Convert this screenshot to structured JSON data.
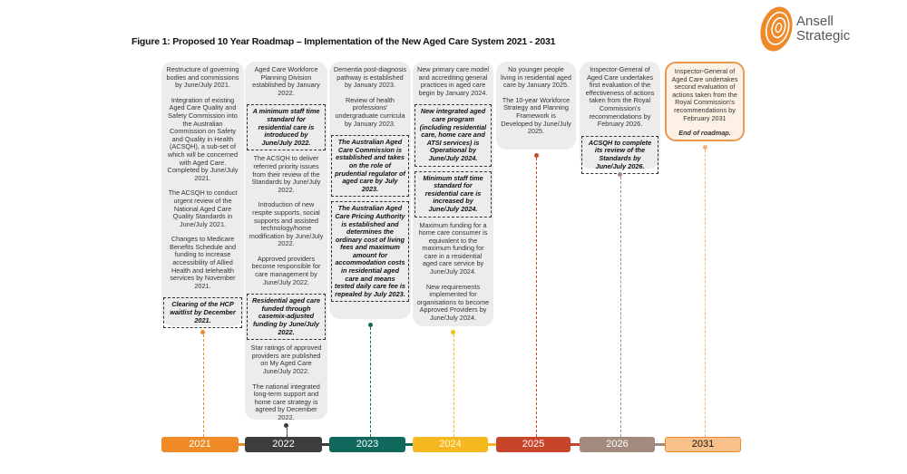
{
  "title": "Figure 1: Proposed 10 Year Roadmap – Implementation of the New Aged Care System 2021 - 2031",
  "logo": {
    "line1": "Ansell",
    "line2": "Strategic",
    "color": "#ef8a2a"
  },
  "years": [
    {
      "label": "2021",
      "color": "#f08a24",
      "items": [
        {
          "text": "Restructure of governing bodies and commissions by June/July 2021."
        },
        {
          "text": "Integration of existing Aged Care Quality and Safety Commission into the Australian Commission on Safety and Quality in Health (ACSQH), a sub-set of which will be concerned with Aged Care. Completed by June/July 2021."
        },
        {
          "text": "The ACSQH to conduct urgent review of the National Aged Care Quality Standards in June/July 2021."
        },
        {
          "text": "Changes to Medicare Benefits Schedule and funding to increase accessibility of Allied Health and telehealth services by November 2021."
        },
        {
          "text": "Clearing of the HCP waitlist by December 2021.",
          "highlight": true
        }
      ]
    },
    {
      "label": "2022",
      "color": "#3d3d3d",
      "items": [
        {
          "text": "Aged Care Workforce Planning Division established by January 2022."
        },
        {
          "text": "A minimum staff time standard for residential care is introduced by June/July 2022.",
          "highlight": true
        },
        {
          "text": "The ACSQH to deliver referred priority issues from their review of the Standards by June/July 2022."
        },
        {
          "text": "Introduction of new respite supports, social supports and assisted technology/home modification by June/July 2022."
        },
        {
          "text": "Approved providers become responsible for care management by June/July 2022."
        },
        {
          "text": "Residential aged care funded through casemix-adjusted funding by June/July 2022.",
          "highlight": true
        },
        {
          "text": "Star ratings of approved providers are published on My Aged Care June/July 2022."
        },
        {
          "text": "The national integrated long-term support and home care strategy is agreed by December 2022."
        }
      ]
    },
    {
      "label": "2023",
      "color": "#11695e",
      "items": [
        {
          "text": "Dementia post-diagnosis pathway is established by January 2023."
        },
        {
          "text": "Review of health professions' undergraduate curricula by January 2023."
        },
        {
          "text": "The Australian Aged Care Commission is established and takes on the role of prudential regulator of aged care by July 2023.",
          "highlight": true
        },
        {
          "text": "The Australian Aged Care Pricing Authority is established and determines the ordinary cost of living fees and maximum amount for accommodation costs in residential aged care and means tested daily care fee is repealed by July 2023.",
          "highlight": true
        }
      ]
    },
    {
      "label": "2024",
      "color": "#f6b81f",
      "items": [
        {
          "text": "New primary care model and accrediting general practices in aged care begin by January 2024."
        },
        {
          "text": "New integrated aged care program (including residential care, home care and ATSI services) is Operational by June/July 2024.",
          "highlight": true
        },
        {
          "text": "Minimum staff time standard for residential care is increased by June/July 2024.",
          "highlight": true
        },
        {
          "text": "Maximum funding for a home care consumer is equivalent to the maximum funding for care in a residential aged care service by June/July 2024."
        },
        {
          "text": "New requirements implemented for organisations to become Approved Providers by June/July 2024."
        }
      ]
    },
    {
      "label": "2025",
      "color": "#c9452a",
      "items": [
        {
          "text": "No younger people living in residential aged care by January 2025."
        },
        {
          "text": "The 10-year Workforce Strategy and Planning Framework is Developed by June/July 2025."
        }
      ]
    },
    {
      "label": "2026",
      "color": "#a38a7e",
      "items": [
        {
          "text": "Inspector-General of Aged Care undertakes first evaluation of the effectiveness of actions taken from the Royal Commission's recommendations by February 2026."
        },
        {
          "text": "ACSQH to complete its review of the Standards by June/July 2026.",
          "highlight": true
        }
      ]
    },
    {
      "label": "2031",
      "color": "#f9c08a",
      "items": [
        {
          "text": "Inspector-General of Aged Care undertakes second evaluation of actions taken from the Royal Commission's recommendations by February 2031"
        },
        {
          "text": "End of roadmap.",
          "bolditalic": true
        }
      ]
    }
  ]
}
